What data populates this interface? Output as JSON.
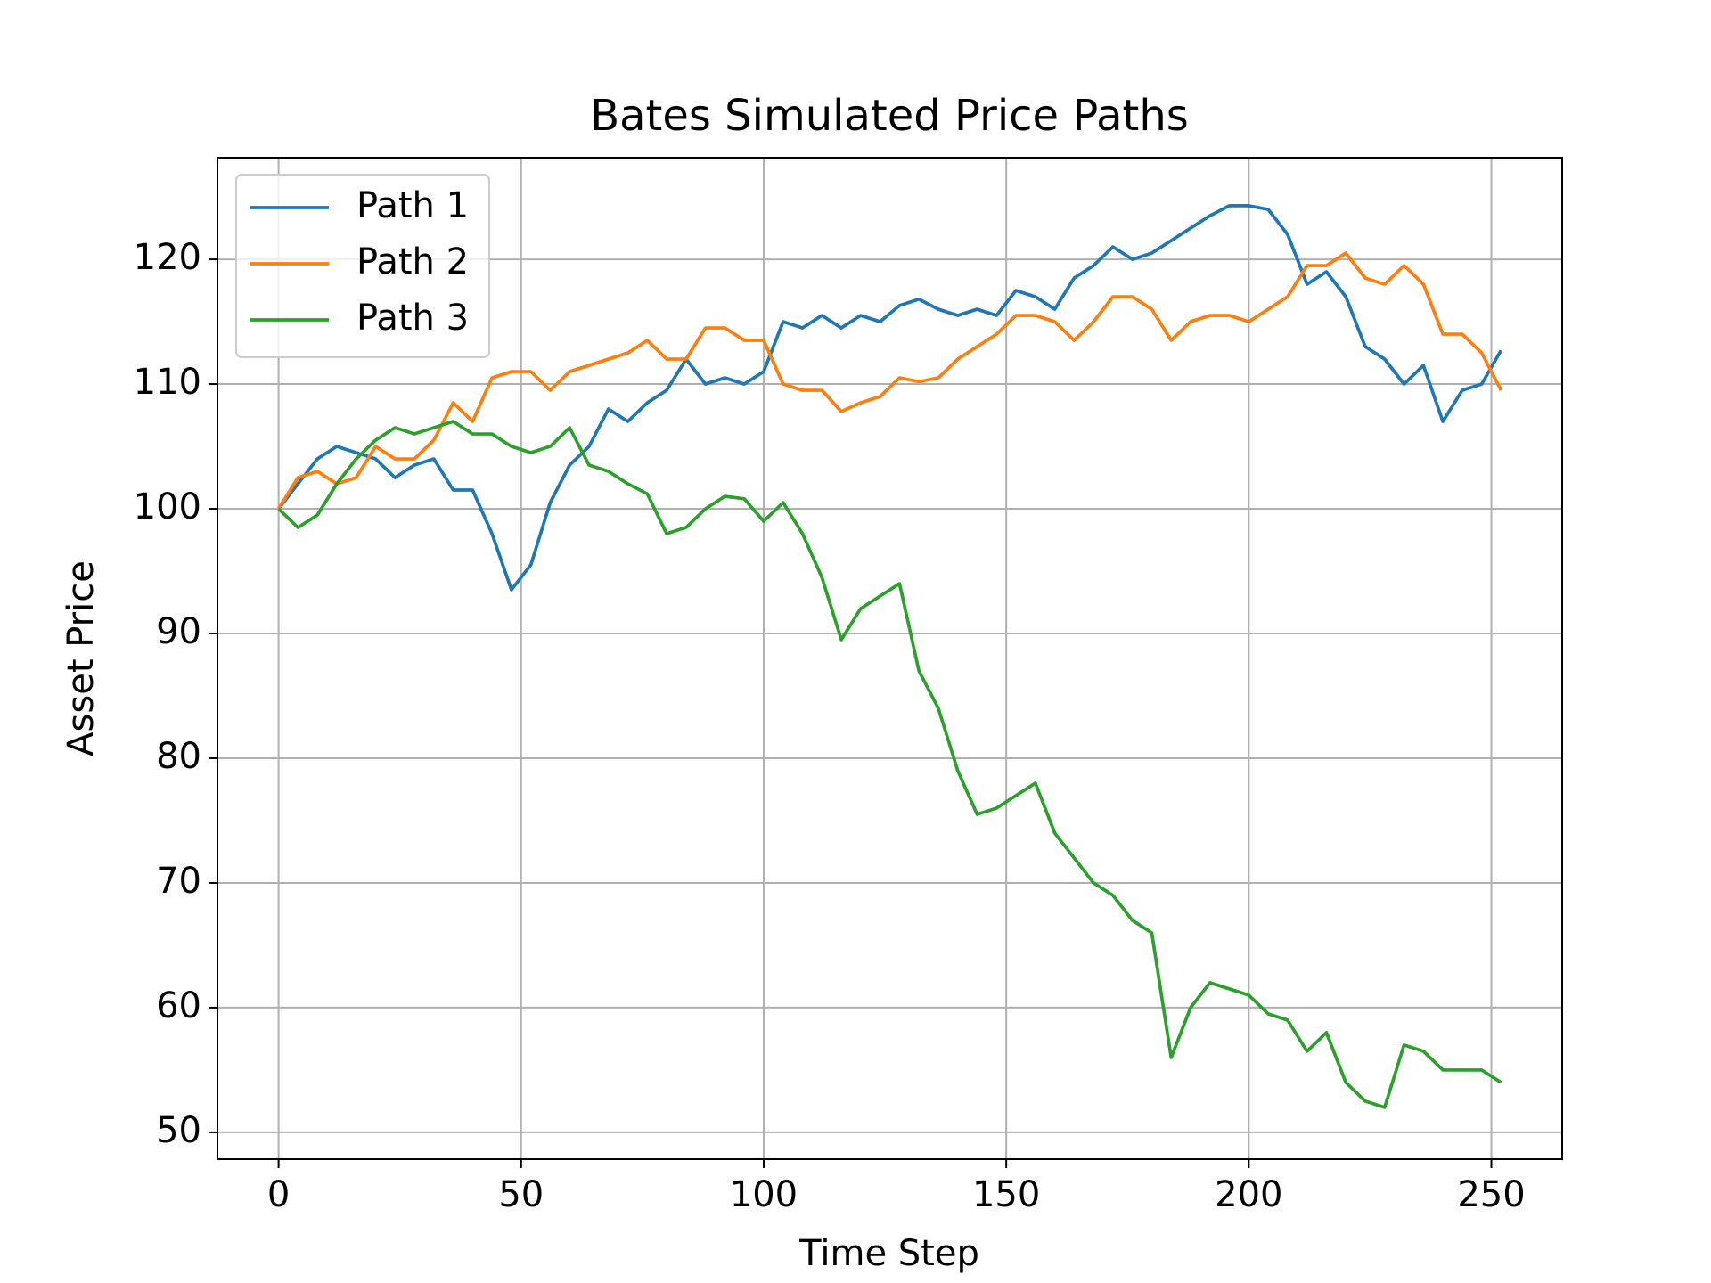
{
  "chart_data": {
    "type": "line",
    "title": "Bates Simulated Price Paths",
    "x_label": "Time Step",
    "y_label": "Asset Price",
    "x": [
      0,
      4,
      8,
      12,
      16,
      20,
      24,
      28,
      32,
      36,
      40,
      44,
      48,
      52,
      56,
      60,
      64,
      68,
      72,
      76,
      80,
      84,
      88,
      92,
      96,
      100,
      104,
      108,
      112,
      116,
      120,
      124,
      128,
      132,
      136,
      140,
      144,
      148,
      152,
      156,
      160,
      164,
      168,
      172,
      176,
      180,
      184,
      188,
      192,
      196,
      200,
      204,
      208,
      212,
      216,
      220,
      224,
      228,
      232,
      236,
      240,
      244,
      248,
      252
    ],
    "series": [
      {
        "name": "Path 1",
        "color": "#1f77b4",
        "values": [
          100,
          102,
          104,
          105,
          104.5,
          104,
          102.5,
          103.5,
          104,
          101.5,
          101.5,
          98,
          93.5,
          95.5,
          100.5,
          103.5,
          105,
          108,
          107,
          108.5,
          109.5,
          112,
          110,
          110.5,
          110,
          111,
          115,
          114.5,
          115.5,
          114.5,
          115.5,
          115,
          116.3,
          116.8,
          116,
          115.5,
          116,
          115.5,
          117.5,
          117,
          116,
          118.5,
          119.5,
          121,
          120,
          120.5,
          121.5,
          122.5,
          123.5,
          124.3,
          124.3,
          124,
          122,
          118,
          119,
          117,
          113,
          112,
          110,
          111.5,
          107,
          109.5,
          110,
          112.7
        ]
      },
      {
        "name": "Path 2",
        "color": "#ff7f0e",
        "values": [
          100,
          102.5,
          103,
          102,
          102.5,
          105,
          104,
          104,
          105.5,
          108.5,
          107,
          110.5,
          111,
          111,
          109.5,
          111,
          111.5,
          112,
          112.5,
          113.5,
          112,
          112,
          114.5,
          114.5,
          113.5,
          113.5,
          110,
          109.5,
          109.5,
          107.8,
          108.5,
          109,
          110.5,
          110.2,
          110.5,
          112,
          113,
          114,
          115.5,
          115.5,
          115,
          113.5,
          115,
          117,
          117,
          116,
          113.5,
          115,
          115.5,
          115.5,
          115,
          116,
          117,
          119.5,
          119.5,
          120.5,
          118.5,
          118,
          119.5,
          118,
          114,
          114,
          112.5,
          109.5
        ]
      },
      {
        "name": "Path 3",
        "color": "#2ca02c",
        "values": [
          100,
          98.5,
          99.5,
          102,
          104,
          105.5,
          106.5,
          106,
          106.5,
          107,
          106,
          106,
          105,
          104.5,
          105,
          106.5,
          103.5,
          103,
          102,
          101.2,
          98,
          98.5,
          100,
          101,
          100.8,
          99,
          100.5,
          98,
          94.5,
          89.5,
          92,
          93,
          94,
          87,
          84,
          79,
          75.5,
          76,
          77,
          78,
          74,
          72,
          70,
          69,
          67,
          66,
          56,
          60,
          62,
          61.5,
          61,
          59.5,
          59,
          56.5,
          58,
          54,
          52.5,
          52,
          57,
          56.5,
          55,
          55,
          55,
          54
        ]
      }
    ],
    "xlim": [
      -12.6,
      264.6
    ],
    "xticks": [
      0,
      50,
      100,
      150,
      200,
      250
    ],
    "ylim": [
      47.85,
      128.15
    ],
    "yticks": [
      50,
      60,
      70,
      80,
      90,
      100,
      110,
      120
    ],
    "grid": true,
    "legend": "upper left"
  }
}
